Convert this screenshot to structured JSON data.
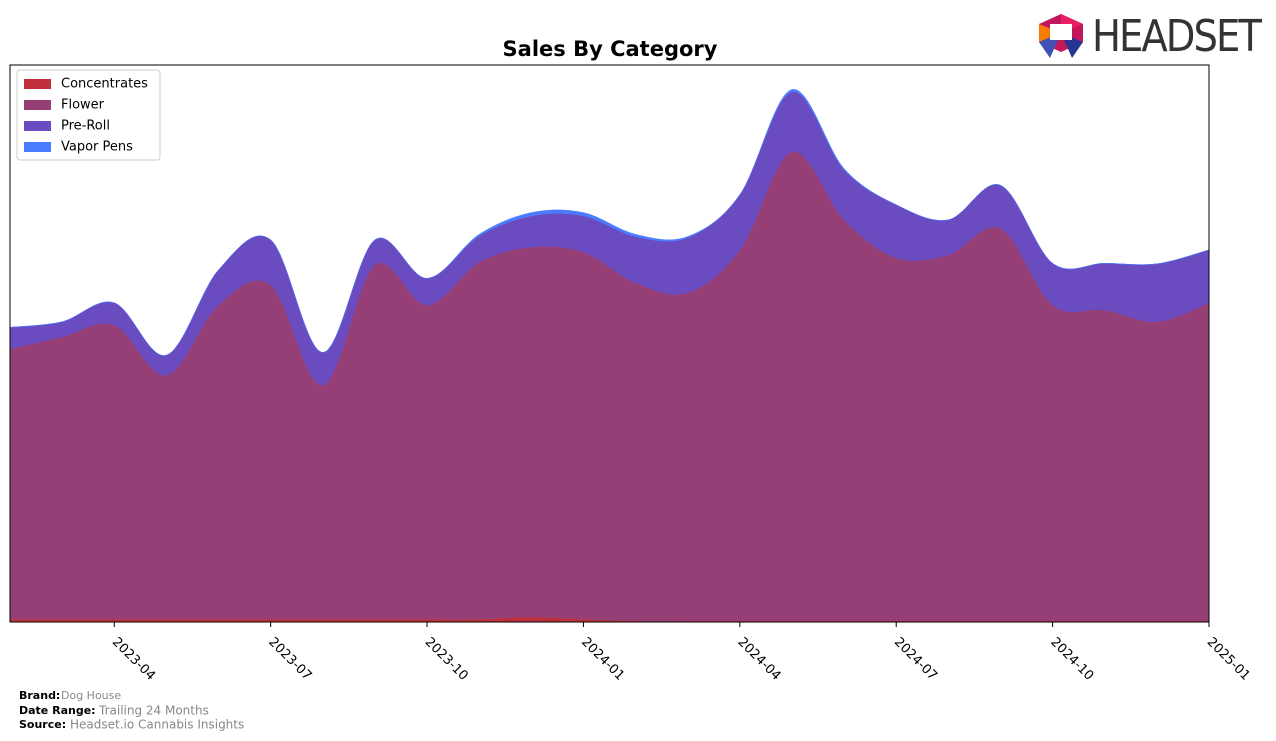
{
  "logo_text": "HEADSET",
  "footer": {
    "brand_label": "Brand:",
    "brand": "Dog House",
    "range_label": "Date Range:",
    "range": "Trailing 24 Months",
    "source_label": "Source:",
    "source": "Headset.io Cannabis Insights"
  },
  "chart_data": {
    "type": "stacked-area",
    "title": "Sales By Category",
    "x": [
      "2023-02",
      "2023-03",
      "2023-04",
      "2023-05",
      "2023-06",
      "2023-07",
      "2023-08",
      "2023-09",
      "2023-10",
      "2023-11",
      "2023-12",
      "2024-01",
      "2024-02",
      "2024-03",
      "2024-04",
      "2024-05",
      "2024-06",
      "2024-07",
      "2024-08",
      "2024-09",
      "2024-10",
      "2024-11",
      "2024-12",
      "2025-01"
    ],
    "xlim": [
      "2023-02",
      "2025-01"
    ],
    "xticks": [
      "2023-04",
      "2023-07",
      "2023-10",
      "2024-01",
      "2024-04",
      "2024-07",
      "2024-10",
      "2025-01"
    ],
    "ylim": [
      0,
      100
    ],
    "legend": "upper left",
    "series": [
      {
        "name": "Concentrates",
        "color": "#c0303a",
        "values": [
          0.5,
          0.5,
          0.5,
          0.5,
          0.5,
          0.5,
          0.5,
          0.5,
          0.5,
          0.5,
          0.9,
          0.5,
          0.2,
          0.2,
          0.2,
          0.2,
          0.2,
          0.2,
          0.2,
          0.2,
          0.2,
          0.2,
          0.2,
          0.2
        ]
      },
      {
        "name": "Flower",
        "color": "#963f76",
        "values": [
          48.5,
          50.7,
          52.8,
          43.8,
          56.4,
          60.0,
          42.0,
          63.6,
          56.4,
          64.1,
          66.4,
          65.9,
          60.7,
          58.9,
          66.6,
          84.2,
          72.0,
          65.2,
          65.7,
          70.5,
          56.7,
          55.8,
          53.7,
          57.1
        ]
      },
      {
        "name": "Pre-Roll",
        "color": "#6a4bc0",
        "values": [
          3.9,
          2.7,
          4.0,
          3.6,
          6.3,
          8.1,
          5.9,
          4.5,
          4.8,
          4.7,
          5.6,
          6.5,
          8.3,
          9.9,
          9.9,
          10.8,
          9.0,
          9.5,
          6.3,
          7.7,
          7.5,
          8.4,
          10.4,
          9.5
        ]
      },
      {
        "name": "Vapor Pens",
        "color": "#4a7cff",
        "values": [
          0,
          0,
          0,
          0,
          0,
          0,
          0,
          0,
          0,
          0.3,
          0.6,
          0.6,
          0.4,
          0.2,
          0,
          0.4,
          0.2,
          0,
          0,
          0,
          0,
          0,
          0,
          0
        ]
      }
    ]
  }
}
